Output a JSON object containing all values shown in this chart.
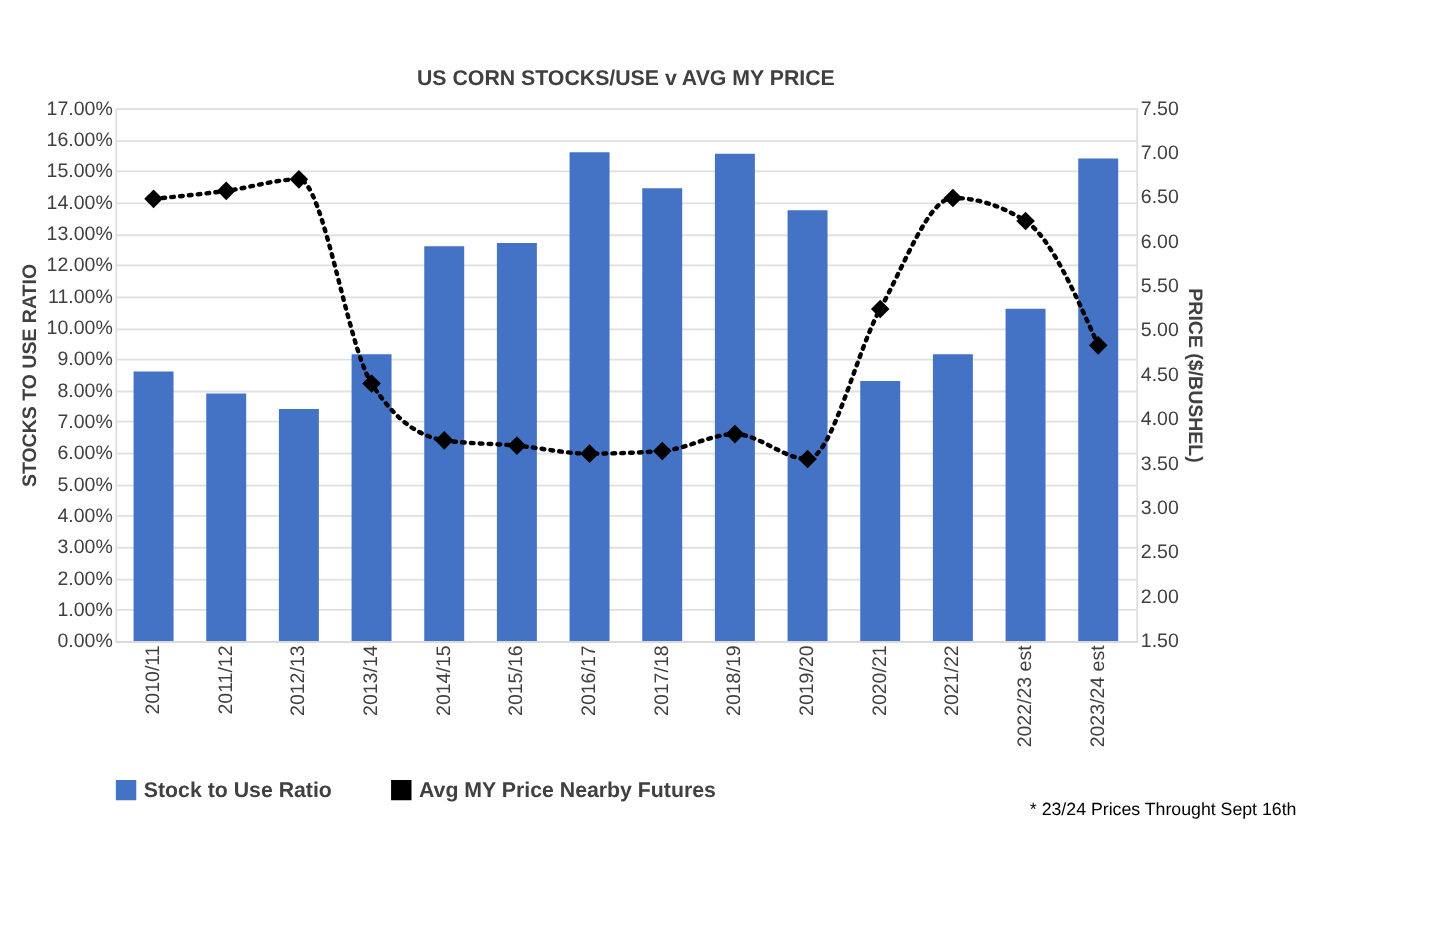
{
  "chart_data": {
    "type": "bar",
    "title": "US CORN STOCKS/USE v AVG MY PRICE",
    "categories": [
      "2010/11",
      "2011/12",
      "2012/13",
      "2013/14",
      "2014/15",
      "2015/16",
      "2016/17",
      "2017/18",
      "2018/19",
      "2019/20",
      "2020/21",
      "2021/22",
      "2022/23 est",
      "2023/24 est"
    ],
    "series": [
      {
        "name": "Stock to Use Ratio",
        "color": "#4472c4",
        "values": [
          8.6,
          7.9,
          7.4,
          9.15,
          12.6,
          12.7,
          15.6,
          14.45,
          15.55,
          13.75,
          8.3,
          9.15,
          10.6,
          15.4
        ]
      },
      {
        "name": "Avg MY Price Nearby Futures",
        "color": "#000000",
        "type": "line",
        "axis": "y2",
        "marker": "diamond",
        "line_style": "dotted",
        "values": [
          6.48,
          6.57,
          6.7,
          4.4,
          3.76,
          3.7,
          3.61,
          3.64,
          3.83,
          3.55,
          5.24,
          6.49,
          6.23,
          4.83
        ]
      }
    ],
    "ylabel": "STOCKS TO USE RATIO",
    "y2label": "PRICE ($/BUSHEL)",
    "ylim": [
      0,
      17
    ],
    "yticks": [
      {
        "value": 0,
        "label": "0.00%"
      },
      {
        "value": 1,
        "label": "1.00%"
      },
      {
        "value": 2,
        "label": "2.00%"
      },
      {
        "value": 3,
        "label": "3.00%"
      },
      {
        "value": 4,
        "label": "4.00%"
      },
      {
        "value": 5,
        "label": "5.00%"
      },
      {
        "value": 6,
        "label": "6.00%"
      },
      {
        "value": 7,
        "label": "7.00%"
      },
      {
        "value": 8,
        "label": "8.00%"
      },
      {
        "value": 9,
        "label": "9.00%"
      },
      {
        "value": 10,
        "label": "10.00%"
      },
      {
        "value": 11,
        "label": "11.00%"
      },
      {
        "value": 12,
        "label": "12.00%"
      },
      {
        "value": 13,
        "label": "13.00%"
      },
      {
        "value": 14,
        "label": "14.00%"
      },
      {
        "value": 15,
        "label": "15.00%"
      },
      {
        "value": 16,
        "label": "16.00%"
      },
      {
        "value": 17,
        "label": "17.00%"
      }
    ],
    "y2lim": [
      1.5,
      7.5
    ],
    "y2ticks": [
      {
        "value": 1.5,
        "label": "1.50"
      },
      {
        "value": 2,
        "label": "2.00"
      },
      {
        "value": 2.5,
        "label": "2.50"
      },
      {
        "value": 3,
        "label": "3.00"
      },
      {
        "value": 3.5,
        "label": "3.50"
      },
      {
        "value": 4,
        "label": "4.00"
      },
      {
        "value": 4.5,
        "label": "4.50"
      },
      {
        "value": 5,
        "label": "5.00"
      },
      {
        "value": 5.5,
        "label": "5.50"
      },
      {
        "value": 6,
        "label": "6.00"
      },
      {
        "value": 6.5,
        "label": "6.50"
      },
      {
        "value": 7,
        "label": "7.00"
      },
      {
        "value": 7.5,
        "label": "7.50"
      }
    ],
    "grid": "y",
    "legend": "bottom",
    "annotations": [
      "* 23/24 Prices Throught Sept 16th"
    ]
  }
}
